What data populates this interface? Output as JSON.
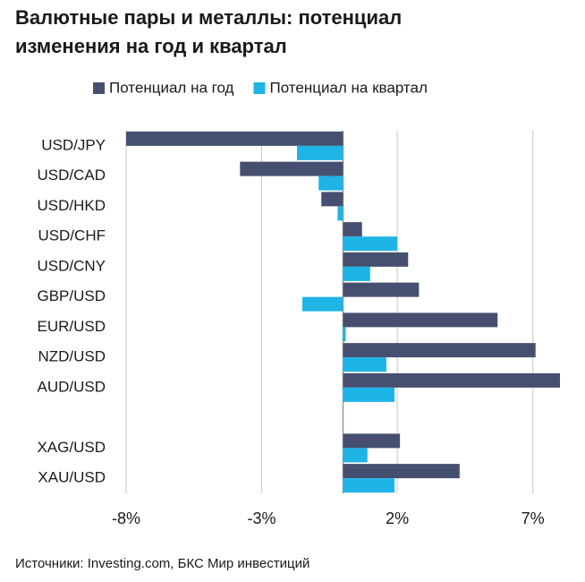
{
  "chart_data": {
    "type": "hbar",
    "title": [
      "Валютные пары и металлы: потенциал",
      "изменения на год и квартал"
    ],
    "source": "Источники: Investing.com, БКС Мир инвестиций",
    "categories": [
      "USD/JPY",
      "USD/CAD",
      "USD/HKD",
      "USD/CHF",
      "USD/CNY",
      "GBP/USD",
      "EUR/USD",
      "NZD/USD",
      "AUD/USD",
      null,
      "XAG/USD",
      "XAU/USD"
    ],
    "series": [
      {
        "name": "Потенциал на год",
        "color": "#464f70",
        "values": [
          -8.0,
          -3.8,
          -0.8,
          0.7,
          2.4,
          2.8,
          5.7,
          7.1,
          8.0,
          null,
          2.1,
          4.3
        ]
      },
      {
        "name": "Потенциал на квартал",
        "color": "#1fb4e6",
        "values": [
          -1.7,
          -0.9,
          -0.2,
          2.0,
          1.0,
          -1.5,
          0.1,
          1.6,
          1.9,
          null,
          0.9,
          1.9
        ]
      }
    ],
    "xlim": [
      -8,
      8
    ],
    "xticks": [
      {
        "value": -8,
        "label": "-8%"
      },
      {
        "value": -3,
        "label": "-3%"
      },
      {
        "value": 2,
        "label": "2%"
      },
      {
        "value": 7,
        "label": "7%"
      }
    ],
    "grid": true,
    "legend": "top"
  }
}
